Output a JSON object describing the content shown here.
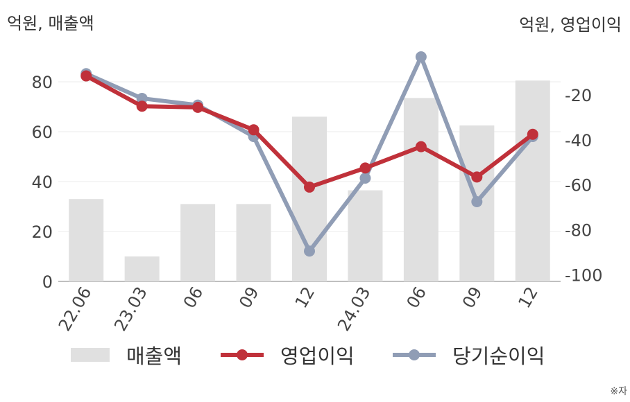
{
  "left_axis_title": "억원, 매출액",
  "right_axis_title": "억원, 영업이익",
  "note": "※자",
  "colors": {
    "bar": "#e0e0e0",
    "op": "#c0313a",
    "net": "#909db5",
    "grid": "#ebebeb",
    "axis": "#aaaaaa"
  },
  "chart_data": {
    "type": "bar+line",
    "categories": [
      "22.06",
      "23.03",
      "06",
      "09",
      "12",
      "24.03",
      "06",
      "09",
      "12"
    ],
    "left_axis": {
      "ylim": [
        0,
        90
      ],
      "ticks": [
        0,
        20,
        40,
        60,
        80
      ]
    },
    "right_axis": {
      "ylim": [
        -103,
        -3
      ],
      "ticks": [
        -20,
        -40,
        -60,
        -80,
        -100
      ]
    },
    "series": [
      {
        "name": "매출액",
        "type": "bar",
        "axis": "left",
        "values": [
          33,
          10,
          31,
          31,
          66,
          36.5,
          73.5,
          62.5,
          80.5
        ]
      },
      {
        "name": "영업이익",
        "type": "line",
        "axis": "right",
        "values": [
          -11.5,
          -25,
          -25.5,
          -35.5,
          -61,
          -52.5,
          -43,
          -56.5,
          -37.5
        ]
      },
      {
        "name": "당기순이익",
        "type": "line",
        "axis": "right",
        "values": [
          -10.5,
          -21.5,
          -24.5,
          -38.5,
          -89.5,
          -57,
          -3,
          -67.5,
          -38.5
        ]
      }
    ],
    "legend": {
      "position": "bottom"
    },
    "grid": true
  }
}
